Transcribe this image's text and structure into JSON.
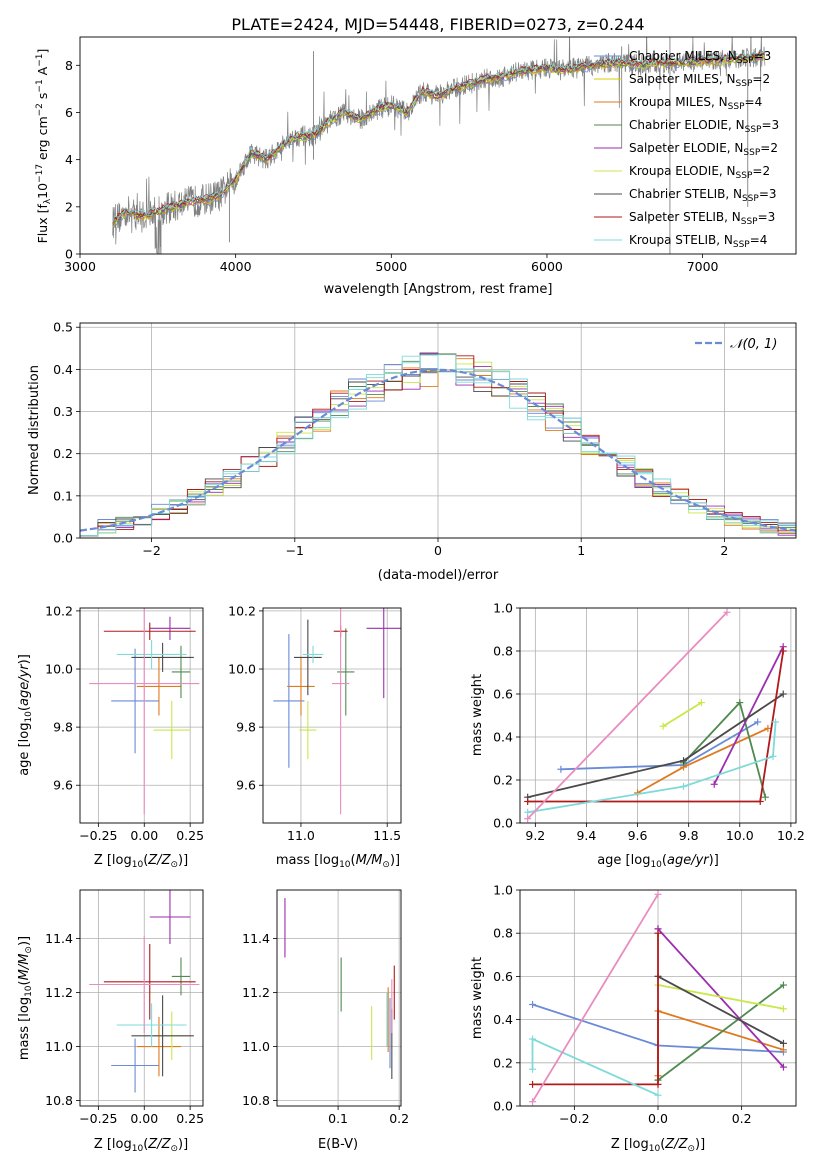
{
  "figure": {
    "title": "PLATE=2424, MJD=54448, FIBERID=0273, z=0.244"
  },
  "legend_spectrum": [
    {
      "label": "Chabrier MILES, N",
      "sub": "SSP",
      "tail": "=3",
      "color": "#6a8bd6"
    },
    {
      "label": "Salpeter MILES, N",
      "sub": "SSP",
      "tail": "=2",
      "color": "#d4cf00"
    },
    {
      "label": "Kroupa MILES, N",
      "sub": "SSP",
      "tail": "=4",
      "color": "#e07a1f"
    },
    {
      "label": "Chabrier ELODIE, N",
      "sub": "SSP",
      "tail": "=3",
      "color": "#4f8a4f"
    },
    {
      "label": "Salpeter ELODIE, N",
      "sub": "SSP",
      "tail": "=2",
      "color": "#9b2fae"
    },
    {
      "label": "Kroupa ELODIE, N",
      "sub": "SSP",
      "tail": "=2",
      "color": "#c8e84a"
    },
    {
      "label": "Chabrier STELIB, N",
      "sub": "SSP",
      "tail": "=3",
      "color": "#4a4a4a"
    },
    {
      "label": "Salpeter STELIB, N",
      "sub": "SSP",
      "tail": "=3",
      "color": "#b01a1a"
    },
    {
      "label": "Kroupa STELIB, N",
      "sub": "SSP",
      "tail": "=4",
      "color": "#7fdada"
    }
  ],
  "legend_hist": {
    "label": "𝒩(0, 1)",
    "color": "#6a8bd6"
  },
  "series_colors": [
    "#6a8bd6",
    "#e07a1f",
    "#4f8a4f",
    "#9b2fae",
    "#c8e84a",
    "#4a4a4a",
    "#b01a1a",
    "#7fdada",
    "#e98cc0"
  ],
  "chart_data": [
    {
      "type": "line",
      "panel": "spectrum",
      "xlabel": "wavelength [Angstrom, rest frame]",
      "ylabel": "Flux [f_λ 10^-17 erg cm^-2 s^-1 A^-1]",
      "xlim": [
        3000,
        7600
      ],
      "ylim": [
        0,
        9.2
      ],
      "xticks": [
        3000,
        4000,
        5000,
        6000,
        7000
      ],
      "yticks": [
        0,
        2,
        4,
        6,
        8
      ],
      "data_color": "#808080",
      "continuum": {
        "x": [
          3200,
          3300,
          3400,
          3500,
          3600,
          3700,
          3800,
          3900,
          4000,
          4100,
          4200,
          4300,
          4400,
          4500,
          4600,
          4700,
          4800,
          4900,
          5000,
          5100,
          5200,
          5300,
          5400,
          5500,
          5600,
          5700,
          5800,
          5900,
          6000,
          6100,
          6200,
          6300,
          6400,
          6500,
          6600,
          6700,
          6800,
          6900,
          7000,
          7100,
          7200,
          7300,
          7400
        ],
        "y": [
          1.3,
          1.8,
          1.6,
          1.8,
          2.0,
          2.2,
          2.3,
          2.5,
          3.2,
          4.3,
          4.0,
          4.6,
          5.0,
          5.0,
          5.6,
          6.0,
          5.7,
          6.1,
          6.3,
          6.0,
          6.9,
          6.7,
          7.0,
          7.2,
          7.4,
          7.5,
          7.7,
          7.8,
          7.9,
          7.8,
          7.9,
          8.0,
          8.1,
          8.1,
          8.0,
          8.1,
          8.1,
          8.1,
          8.2,
          8.2,
          8.3,
          8.3,
          8.4
        ]
      }
    },
    {
      "type": "histogram",
      "panel": "residuals",
      "xlabel": "(data-model)/error",
      "ylabel": "Normed distribution",
      "xlim": [
        -2.5,
        2.5
      ],
      "ylim": [
        0,
        0.51
      ],
      "xticks": [
        -2,
        -1,
        0,
        1,
        2
      ],
      "yticks": [
        0.0,
        0.1,
        0.2,
        0.3,
        0.4,
        0.5
      ],
      "bin_width": 0.125,
      "reference_curve": "gaussian mean 0 sigma 1"
    },
    {
      "type": "scatter",
      "panel": "age-vs-Z",
      "xlabel": "Z [log10(Z/Z⊙)]",
      "ylabel": "age [log10(age/yr)]",
      "xlim": [
        -0.35,
        0.32
      ],
      "ylim": [
        9.47,
        10.21
      ],
      "xticks": [
        -0.25,
        0.0,
        0.25
      ],
      "yticks": [
        9.6,
        9.8,
        10.0,
        10.2
      ],
      "points": [
        {
          "x": -0.05,
          "y": 9.89,
          "xerr": 0.13,
          "yerr": 0.18
        },
        {
          "x": 0.08,
          "y": 9.94,
          "xerr": 0.12,
          "yerr": 0.1
        },
        {
          "x": 0.2,
          "y": 9.99,
          "xerr": 0.05,
          "yerr": 0.09
        },
        {
          "x": 0.14,
          "y": 10.14,
          "xerr": 0.11,
          "yerr": 0.04
        },
        {
          "x": 0.15,
          "y": 9.79,
          "xerr": 0.1,
          "yerr": 0.1
        },
        {
          "x": 0.1,
          "y": 10.04,
          "xerr": 0.17,
          "yerr": 0.05
        },
        {
          "x": 0.03,
          "y": 10.13,
          "xerr": 0.25,
          "yerr": 0.03
        },
        {
          "x": 0.04,
          "y": 10.05,
          "xerr": 0.19,
          "yerr": 0.05
        },
        {
          "x": 0.0,
          "y": 9.95,
          "xerr": 0.3,
          "yerr": 0.45
        }
      ]
    },
    {
      "type": "scatter",
      "panel": "age-vs-mass",
      "xlabel": "mass [log10(M/M⊙)]",
      "xlim": [
        10.78,
        11.58
      ],
      "ylim": [
        9.47,
        10.21
      ],
      "xticks": [
        11.0,
        11.5
      ],
      "yticks": [
        9.6,
        9.8,
        10.0,
        10.2
      ],
      "points": [
        {
          "x": 10.93,
          "y": 9.89,
          "xerr": 0.09,
          "yerr": 0.23
        },
        {
          "x": 11.0,
          "y": 9.94,
          "xerr": 0.08,
          "yerr": 0.1
        },
        {
          "x": 11.26,
          "y": 9.99,
          "xerr": 0.05,
          "yerr": 0.15
        },
        {
          "x": 11.48,
          "y": 10.14,
          "xerr": 0.1,
          "yerr": 0.24
        },
        {
          "x": 11.04,
          "y": 9.79,
          "xerr": 0.05,
          "yerr": 0.1
        },
        {
          "x": 11.04,
          "y": 10.04,
          "xerr": 0.08,
          "yerr": 0.13
        },
        {
          "x": 11.23,
          "y": 10.13,
          "xerr": 0.04,
          "yerr": 0.02
        },
        {
          "x": 11.07,
          "y": 10.05,
          "xerr": 0.06,
          "yerr": 0.03
        },
        {
          "x": 11.23,
          "y": 9.95,
          "xerr": 0.05,
          "yerr": 0.45
        }
      ]
    },
    {
      "type": "line",
      "panel": "mass-weight-vs-age",
      "xlabel": "age [log10(age/yr)]",
      "ylabel": "mass weight",
      "xlim": [
        9.14,
        10.22
      ],
      "ylim": [
        0,
        1.0
      ],
      "xticks": [
        9.2,
        9.4,
        9.6,
        9.8,
        10.0,
        10.2
      ],
      "yticks": [
        0.0,
        0.2,
        0.4,
        0.6,
        0.8,
        1.0
      ],
      "series": [
        {
          "x": [
            9.3,
            9.78,
            10.07
          ],
          "y": [
            0.25,
            0.27,
            0.47
          ]
        },
        {
          "x": [
            9.6,
            9.78,
            10.11
          ],
          "y": [
            0.14,
            0.26,
            0.44
          ]
        },
        {
          "x": [
            9.78,
            10.0,
            10.1
          ],
          "y": [
            0.28,
            0.56,
            0.12
          ]
        },
        {
          "x": [
            9.9,
            10.17
          ],
          "y": [
            0.18,
            0.82
          ]
        },
        {
          "x": [
            9.7,
            9.85
          ],
          "y": [
            0.45,
            0.56
          ]
        },
        {
          "x": [
            9.17,
            9.78,
            10.17
          ],
          "y": [
            0.12,
            0.29,
            0.6
          ]
        },
        {
          "x": [
            9.17,
            10.08,
            10.17
          ],
          "y": [
            0.1,
            0.1,
            0.8
          ]
        },
        {
          "x": [
            9.17,
            9.78,
            10.13,
            10.14
          ],
          "y": [
            0.05,
            0.17,
            0.31,
            0.47
          ]
        },
        {
          "x": [
            9.17,
            9.95
          ],
          "y": [
            0.02,
            0.98
          ]
        }
      ]
    },
    {
      "type": "scatter",
      "panel": "mass-vs-Z",
      "xlabel": "Z [log10(Z/Z⊙)]",
      "ylabel": "mass [log10(M/M⊙)]",
      "xlim": [
        -0.35,
        0.32
      ],
      "ylim": [
        10.78,
        11.58
      ],
      "xticks": [
        -0.25,
        0.0,
        0.25
      ],
      "yticks": [
        10.8,
        11.0,
        11.2,
        11.4
      ],
      "points": [
        {
          "x": -0.05,
          "y": 10.93,
          "xerr": 0.13,
          "yerr": 0.1
        },
        {
          "x": 0.08,
          "y": 11.0,
          "xerr": 0.12,
          "yerr": 0.11
        },
        {
          "x": 0.2,
          "y": 11.26,
          "xerr": 0.05,
          "yerr": 0.07
        },
        {
          "x": 0.14,
          "y": 11.48,
          "xerr": 0.11,
          "yerr": 0.1
        },
        {
          "x": 0.15,
          "y": 11.04,
          "xerr": 0.1,
          "yerr": 0.09
        },
        {
          "x": 0.1,
          "y": 11.04,
          "xerr": 0.17,
          "yerr": 0.15
        },
        {
          "x": 0.03,
          "y": 11.24,
          "xerr": 0.25,
          "yerr": 0.14
        },
        {
          "x": 0.04,
          "y": 11.08,
          "xerr": 0.19,
          "yerr": 0.08
        },
        {
          "x": 0.0,
          "y": 11.23,
          "xerr": 0.3,
          "yerr": 0.18
        }
      ]
    },
    {
      "type": "scatter",
      "panel": "mass-vs-ebv",
      "xlabel": "E(B-V)",
      "xlim": [
        0.0,
        0.203
      ],
      "ylim": [
        10.78,
        11.58
      ],
      "xticks": [
        0.1,
        0.2
      ],
      "yticks": [
        10.8,
        11.0,
        11.2,
        11.4
      ],
      "points": [
        {
          "x": 0.185,
          "y": 11.05,
          "yerr": 0.13
        },
        {
          "x": 0.182,
          "y": 11.1,
          "yerr": 0.12
        },
        {
          "x": 0.105,
          "y": 11.23,
          "yerr": 0.1
        },
        {
          "x": 0.013,
          "y": 11.44,
          "yerr": 0.11
        },
        {
          "x": 0.155,
          "y": 11.05,
          "yerr": 0.1
        },
        {
          "x": 0.188,
          "y": 11.01,
          "yerr": 0.13
        },
        {
          "x": 0.192,
          "y": 11.2,
          "yerr": 0.1
        },
        {
          "x": 0.18,
          "y": 11.1,
          "yerr": 0.1
        },
        {
          "x": 0.188,
          "y": 11.15,
          "yerr": 0.1
        }
      ]
    },
    {
      "type": "line",
      "panel": "mass-weight-vs-Z",
      "xlabel": "Z [log10(Z/Z⊙)]",
      "ylabel": "mass weight",
      "xlim": [
        -0.33,
        0.33
      ],
      "ylim": [
        0,
        1.0
      ],
      "xticks": [
        -0.2,
        0.0,
        0.2
      ],
      "yticks": [
        0.0,
        0.2,
        0.4,
        0.6,
        0.8,
        1.0
      ],
      "series": [
        {
          "x": [
            -0.3,
            0.0,
            0.3
          ],
          "y": [
            0.47,
            0.28,
            0.25
          ]
        },
        {
          "x": [
            0.0,
            0.0,
            0.3
          ],
          "y": [
            0.14,
            0.44,
            0.26
          ]
        },
        {
          "x": [
            0.0,
            0.0,
            0.3
          ],
          "y": [
            0.12,
            0.12,
            0.56
          ]
        },
        {
          "x": [
            0.0,
            0.0,
            0.3
          ],
          "y": [
            0.82,
            0.82,
            0.18
          ]
        },
        {
          "x": [
            0.0,
            0.3
          ],
          "y": [
            0.56,
            0.45
          ]
        },
        {
          "x": [
            0.0,
            0.0,
            0.3
          ],
          "y": [
            0.6,
            0.6,
            0.29
          ]
        },
        {
          "x": [
            -0.3,
            0.0,
            0.0
          ],
          "y": [
            0.1,
            0.1,
            0.8
          ]
        },
        {
          "x": [
            -0.3,
            -0.3,
            0.0
          ],
          "y": [
            0.17,
            0.31,
            0.05
          ]
        },
        {
          "x": [
            -0.3,
            0.0
          ],
          "y": [
            0.02,
            0.98
          ]
        }
      ]
    }
  ]
}
